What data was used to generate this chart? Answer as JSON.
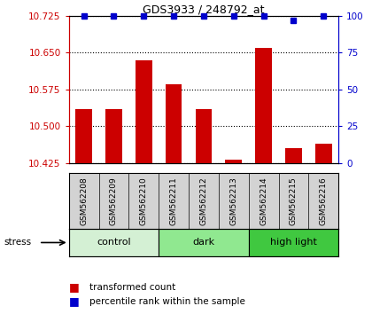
{
  "title": "GDS3933 / 248792_at",
  "categories": [
    "GSM562208",
    "GSM562209",
    "GSM562210",
    "GSM562211",
    "GSM562212",
    "GSM562213",
    "GSM562214",
    "GSM562215",
    "GSM562216"
  ],
  "bar_values": [
    10.535,
    10.535,
    10.635,
    10.585,
    10.535,
    10.432,
    10.66,
    10.455,
    10.465
  ],
  "percentile_values": [
    100,
    100,
    100,
    100,
    100,
    100,
    100,
    97,
    100
  ],
  "groups": [
    {
      "label": "control",
      "start": 0,
      "end": 3
    },
    {
      "label": "dark",
      "start": 3,
      "end": 6
    },
    {
      "label": "high light",
      "start": 6,
      "end": 9
    }
  ],
  "group_colors": [
    "#d4f0d4",
    "#90e890",
    "#40c840"
  ],
  "stress_label": "stress",
  "ylim_left": [
    10.425,
    10.725
  ],
  "ylim_right": [
    0,
    100
  ],
  "yticks_left": [
    10.425,
    10.5,
    10.575,
    10.65,
    10.725
  ],
  "yticks_right": [
    0,
    25,
    50,
    75,
    100
  ],
  "left_axis_color": "#cc0000",
  "right_axis_color": "#0000cc",
  "bar_color": "#cc0000",
  "percentile_color": "#0000cc",
  "bar_width": 0.55,
  "plot_bg_color": "white",
  "grid_color": "black"
}
